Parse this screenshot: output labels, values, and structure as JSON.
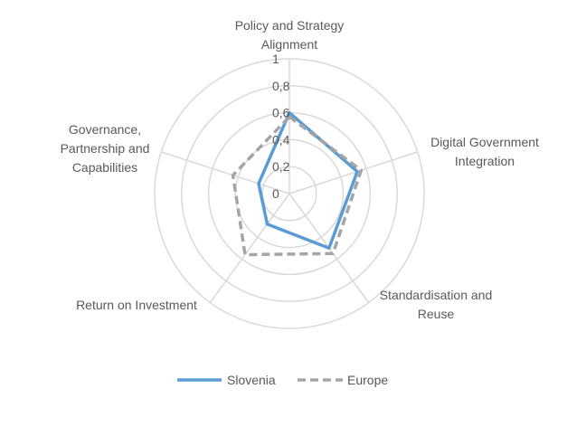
{
  "chart_data": {
    "type": "radar",
    "title": "",
    "axes": [
      [
        "Policy and Strategy",
        "Alignment"
      ],
      [
        "Digital Government",
        "Integration"
      ],
      [
        "Standardisation and",
        "Reuse"
      ],
      [
        "Return on Investment"
      ],
      [
        "Governance,",
        "Partnership and",
        "Capabilities"
      ]
    ],
    "ticks": [
      "0",
      "0,2",
      "0,4",
      "0,6",
      "0,8",
      "1"
    ],
    "rlim": [
      0,
      1
    ],
    "series": [
      {
        "name": "Slovenia",
        "values": [
          0.6,
          0.53,
          0.5,
          0.28,
          0.24
        ],
        "color": "#5B9BD5",
        "dash": "solid"
      },
      {
        "name": "Europe",
        "values": [
          0.57,
          0.56,
          0.55,
          0.56,
          0.44
        ],
        "color": "#A5A5A5",
        "dash": "dashed"
      }
    ],
    "legend_position": "bottom",
    "grid": true
  }
}
